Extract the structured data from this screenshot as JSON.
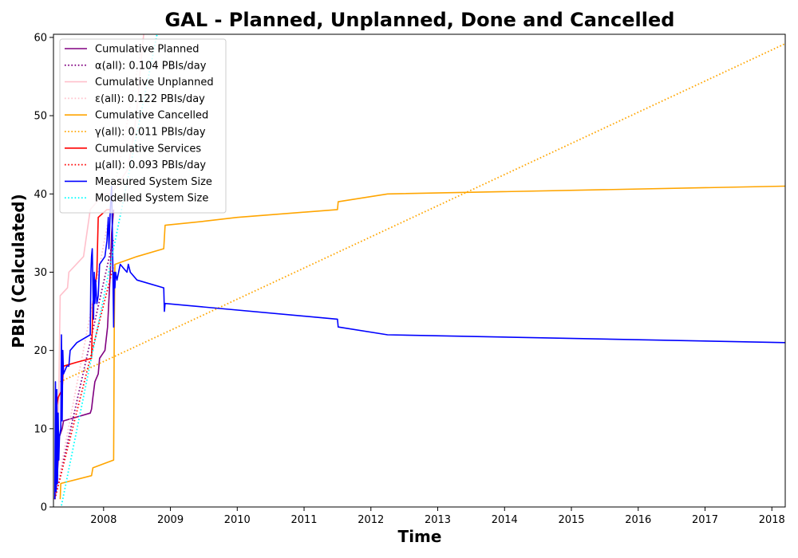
{
  "chart_data": {
    "type": "line",
    "title": "GAL - Planned, Unplanned, Done  and Cancelled",
    "xlabel": "Time",
    "ylabel": "PBIs (Calculated)",
    "xlim": [
      2007.25,
      2018.2
    ],
    "ylim": [
      0,
      60.4
    ],
    "x_ticks": [
      2008,
      2009,
      2010,
      2011,
      2012,
      2013,
      2014,
      2015,
      2016,
      2017,
      2018
    ],
    "y_ticks": [
      0,
      10,
      20,
      30,
      40,
      50,
      60
    ],
    "grid": false,
    "legend_position": "top-left",
    "series": [
      {
        "name": "Cumulative Planned",
        "color": "#800080",
        "style": "solid",
        "points": [
          [
            2007.27,
            1
          ],
          [
            2007.3,
            3
          ],
          [
            2007.32,
            6
          ],
          [
            2007.34,
            9
          ],
          [
            2007.38,
            10
          ],
          [
            2007.4,
            11
          ],
          [
            2007.6,
            11.5
          ],
          [
            2007.8,
            12
          ],
          [
            2007.82,
            12.5
          ],
          [
            2007.84,
            14
          ],
          [
            2007.87,
            16
          ],
          [
            2007.92,
            17
          ],
          [
            2007.94,
            19
          ],
          [
            2008.02,
            20
          ],
          [
            2008.06,
            23
          ],
          [
            2008.1,
            30
          ],
          [
            2008.12,
            35
          ],
          [
            2008.15,
            38
          ]
        ]
      },
      {
        "name": "α(all): 0.104 PBIs/day",
        "color": "#800080",
        "style": "dotted",
        "points": [
          [
            2007.27,
            1
          ],
          [
            2008.15,
            34.4
          ]
        ]
      },
      {
        "name": "Cumulative Unplanned",
        "color": "#ffc0cb",
        "style": "solid",
        "points": [
          [
            2007.27,
            1
          ],
          [
            2007.3,
            8
          ],
          [
            2007.33,
            14
          ],
          [
            2007.35,
            27
          ],
          [
            2007.46,
            28
          ],
          [
            2007.48,
            30
          ],
          [
            2007.7,
            32
          ],
          [
            2007.8,
            38
          ],
          [
            2007.9,
            39
          ],
          [
            2008.0,
            40
          ],
          [
            2008.1,
            40
          ],
          [
            2008.2,
            41
          ],
          [
            2008.35,
            43
          ],
          [
            2008.4,
            45
          ],
          [
            2008.46,
            48
          ],
          [
            2008.5,
            51
          ],
          [
            2008.55,
            56
          ],
          [
            2008.6,
            60.4
          ]
        ]
      },
      {
        "name": "ε(all): 0.122 PBIs/day",
        "color": "#ffc0cb",
        "style": "dotted",
        "points": [
          [
            2007.27,
            1
          ],
          [
            2008.6,
            60.2
          ]
        ]
      },
      {
        "name": "Cumulative Cancelled",
        "color": "#ffa500",
        "style": "solid",
        "points": [
          [
            2007.35,
            1
          ],
          [
            2007.36,
            3
          ],
          [
            2007.82,
            4
          ],
          [
            2007.84,
            5
          ],
          [
            2008.15,
            6
          ],
          [
            2008.16,
            23
          ],
          [
            2008.17,
            31
          ],
          [
            2008.5,
            32
          ],
          [
            2008.9,
            33
          ],
          [
            2008.92,
            36
          ],
          [
            2009.5,
            36.5
          ],
          [
            2010.0,
            37
          ],
          [
            2011.5,
            38
          ],
          [
            2011.51,
            39
          ],
          [
            2012.25,
            40
          ],
          [
            2018.2,
            41
          ]
        ]
      },
      {
        "name": "γ(all): 0.011 PBIs/day",
        "color": "#ffa500",
        "style": "dotted",
        "points": [
          [
            2007.35,
            16
          ],
          [
            2018.2,
            59.2
          ]
        ]
      },
      {
        "name": "Cumulative Services",
        "color": "#ff0000",
        "style": "solid",
        "points": [
          [
            2007.27,
            1
          ],
          [
            2007.3,
            13
          ],
          [
            2007.32,
            14
          ],
          [
            2007.38,
            15
          ],
          [
            2007.4,
            18
          ],
          [
            2007.6,
            18.5
          ],
          [
            2007.82,
            19
          ],
          [
            2007.84,
            26
          ],
          [
            2007.9,
            30
          ],
          [
            2007.92,
            37
          ],
          [
            2008.05,
            38
          ],
          [
            2008.1,
            38
          ]
        ]
      },
      {
        "name": "μ(all): 0.093 PBIs/day",
        "color": "#ff0000",
        "style": "dotted",
        "points": [
          [
            2007.27,
            1
          ],
          [
            2008.15,
            30.9
          ]
        ]
      },
      {
        "name": "Measured System Size",
        "color": "#0000ff",
        "style": "solid",
        "points": [
          [
            2007.27,
            1
          ],
          [
            2007.28,
            16
          ],
          [
            2007.29,
            2
          ],
          [
            2007.3,
            15
          ],
          [
            2007.31,
            3
          ],
          [
            2007.32,
            12
          ],
          [
            2007.33,
            6
          ],
          [
            2007.34,
            9
          ],
          [
            2007.36,
            10
          ],
          [
            2007.37,
            22
          ],
          [
            2007.38,
            11
          ],
          [
            2007.39,
            20
          ],
          [
            2007.4,
            17
          ],
          [
            2007.45,
            18
          ],
          [
            2007.48,
            18
          ],
          [
            2007.5,
            20
          ],
          [
            2007.6,
            21
          ],
          [
            2007.8,
            22
          ],
          [
            2007.81,
            30
          ],
          [
            2007.82,
            32
          ],
          [
            2007.83,
            33
          ],
          [
            2007.85,
            24
          ],
          [
            2007.86,
            30
          ],
          [
            2007.87,
            26
          ],
          [
            2007.88,
            29
          ],
          [
            2007.9,
            26
          ],
          [
            2007.92,
            27
          ],
          [
            2007.94,
            31
          ],
          [
            2008.02,
            32
          ],
          [
            2008.05,
            34
          ],
          [
            2008.07,
            37
          ],
          [
            2008.08,
            33
          ],
          [
            2008.1,
            38
          ],
          [
            2008.12,
            41
          ],
          [
            2008.13,
            36
          ],
          [
            2008.15,
            23
          ],
          [
            2008.16,
            30
          ],
          [
            2008.17,
            28
          ],
          [
            2008.18,
            30
          ],
          [
            2008.2,
            29
          ],
          [
            2008.25,
            31
          ],
          [
            2008.3,
            30.5
          ],
          [
            2008.35,
            30
          ],
          [
            2008.37,
            31
          ],
          [
            2008.4,
            30
          ],
          [
            2008.5,
            29
          ],
          [
            2008.9,
            28
          ],
          [
            2008.91,
            25
          ],
          [
            2008.92,
            26
          ],
          [
            2011.5,
            24
          ],
          [
            2011.51,
            23
          ],
          [
            2012.25,
            22
          ],
          [
            2018.2,
            21
          ]
        ]
      },
      {
        "name": "Modelled System Size",
        "color": "#00ffff",
        "style": "dotted",
        "points": [
          [
            2007.27,
            -4
          ],
          [
            2008.8,
            60.4
          ]
        ]
      }
    ]
  }
}
